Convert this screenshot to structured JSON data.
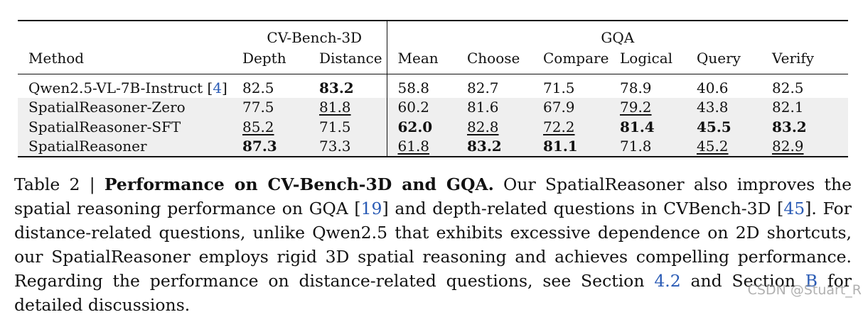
{
  "table": {
    "groups": {
      "cvbench": "CV-Bench-3D",
      "gqa": "GQA"
    },
    "columns": [
      "Method",
      "Depth",
      "Distance",
      "Mean",
      "Choose",
      "Compare",
      "Logical",
      "Query",
      "Verify"
    ],
    "rows": [
      {
        "method": "Qwen2.5-VL-7B-Instruct",
        "ref": "4",
        "values": [
          "82.5",
          "83.2",
          "58.8",
          "82.7",
          "71.5",
          "78.9",
          "40.6",
          "82.5"
        ],
        "styles": [
          "",
          "bold",
          "",
          "",
          "",
          "",
          "",
          ""
        ]
      },
      {
        "method": "SpatialReasoner-Zero",
        "values": [
          "77.5",
          "81.8",
          "60.2",
          "81.6",
          "67.9",
          "79.2",
          "43.8",
          "82.1"
        ],
        "styles": [
          "",
          "ul",
          "",
          "",
          "",
          "ul",
          "",
          ""
        ]
      },
      {
        "method": "SpatialReasoner-SFT",
        "values": [
          "85.2",
          "71.5",
          "62.0",
          "82.8",
          "72.2",
          "81.4",
          "45.5",
          "83.2"
        ],
        "styles": [
          "ul",
          "",
          "bold",
          "ul",
          "ul",
          "bold",
          "bold",
          "bold"
        ]
      },
      {
        "method": "SpatialReasoner",
        "values": [
          "87.3",
          "73.3",
          "61.8",
          "83.2",
          "81.1",
          "71.8",
          "45.2",
          "82.9"
        ],
        "styles": [
          "bold",
          "",
          "ul",
          "bold",
          "bold",
          "",
          "ul",
          "ul"
        ]
      }
    ]
  },
  "caption": {
    "label": "Table 2 |",
    "heading": "Performance on CV-Bench-3D and GQA.",
    "t1": " Our SpatialReasoner also improves the spatial reasoning performance on GQA [",
    "r1": "19",
    "t2": "] and depth-related questions in CVBench-3D [",
    "r2": "45",
    "t3": "].  For distance-related questions, unlike Qwen2.5 that exhibits excessive dependence on 2D shortcuts, our SpatialReasoner employs rigid 3D spatial reasoning and achieves compelling performance. Regarding the performance on distance-related questions, see Section ",
    "r3": "4.2",
    "t4": " and Section ",
    "r4": "B",
    "t5": " for detailed discussions."
  },
  "watermark": "CSDN @Stuart_R"
}
